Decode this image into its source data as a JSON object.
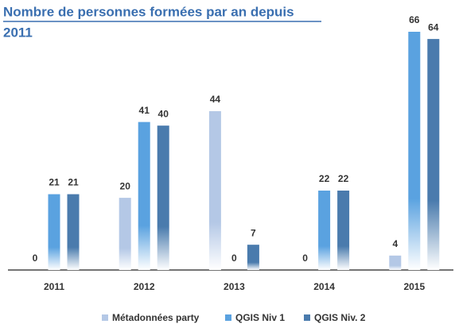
{
  "chart_data": {
    "type": "bar",
    "title_lines": [
      "Nombre de personnes formées par an depuis",
      "2011"
    ],
    "categories": [
      "2011",
      "2012",
      "2013",
      "2014",
      "2015"
    ],
    "series": [
      {
        "name": "Métadonnées party",
        "color": "#b4c8e6",
        "values": [
          0,
          20,
          44,
          0,
          4
        ]
      },
      {
        "name": "QGIS Niv 1",
        "color": "#5aa2e0",
        "values": [
          21,
          41,
          0,
          22,
          66
        ]
      },
      {
        "name": "QGIS Niv. 2",
        "color": "#4a7bad",
        "values": [
          21,
          40,
          7,
          22,
          64
        ]
      }
    ]
  }
}
